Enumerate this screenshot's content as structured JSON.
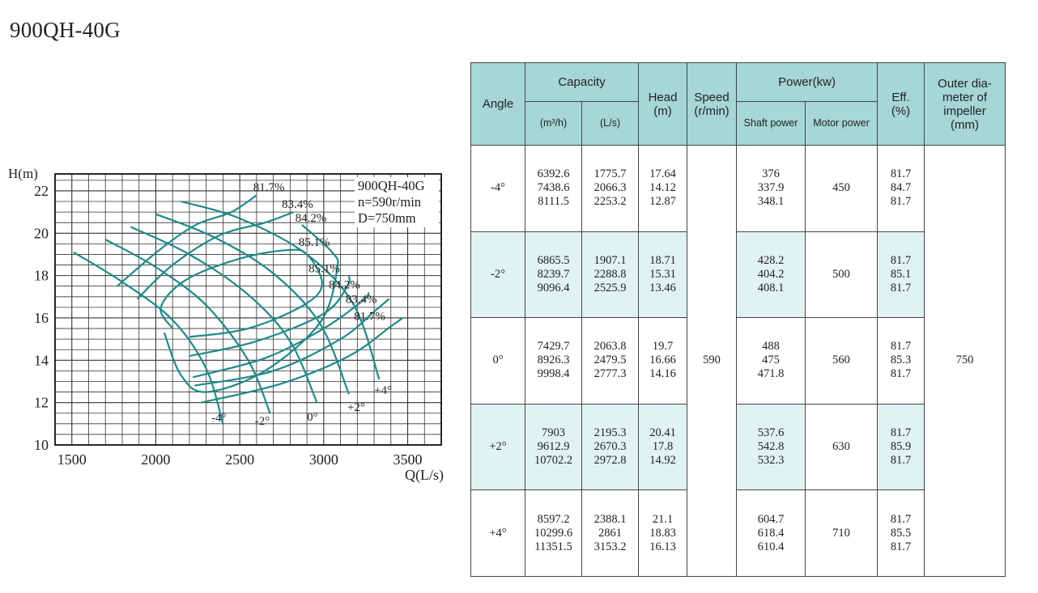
{
  "page_title": "900QH-40G",
  "chart_data": {
    "type": "line",
    "title": "",
    "xlabel": "Q(L/s)",
    "ylabel": "H(m)",
    "xlim": [
      1400,
      3700
    ],
    "ylim": [
      10,
      22.8
    ],
    "x_ticks": [
      1500,
      2000,
      2500,
      3000,
      3500
    ],
    "y_ticks": [
      10,
      12,
      14,
      16,
      18,
      20,
      22
    ],
    "grid": true,
    "info_box": [
      "900QH-40G",
      "n=590r/min",
      "D=750mm"
    ],
    "head_curves": [
      {
        "name": "-4°",
        "points": [
          [
            1510,
            19.1
          ],
          [
            1800,
            17.7
          ],
          [
            2100,
            15.9
          ],
          [
            2300,
            13.6
          ],
          [
            2400,
            11.0
          ]
        ]
      },
      {
        "name": "-2°",
        "points": [
          [
            1700,
            19.7
          ],
          [
            2000,
            18.4
          ],
          [
            2300,
            16.6
          ],
          [
            2550,
            14.0
          ],
          [
            2680,
            11.5
          ]
        ]
      },
      {
        "name": "0°",
        "points": [
          [
            1850,
            20.3
          ],
          [
            2200,
            19.0
          ],
          [
            2550,
            17.1
          ],
          [
            2800,
            14.9
          ],
          [
            2960,
            12.0
          ]
        ]
      },
      {
        "name": "+2°",
        "points": [
          [
            2000,
            20.9
          ],
          [
            2350,
            19.8
          ],
          [
            2700,
            18.1
          ],
          [
            2980,
            15.7
          ],
          [
            3150,
            12.4
          ]
        ]
      },
      {
        "name": "+4°",
        "points": [
          [
            2150,
            21.5
          ],
          [
            2500,
            20.7
          ],
          [
            2900,
            19.0
          ],
          [
            3180,
            16.6
          ],
          [
            3330,
            13.1
          ]
        ]
      }
    ],
    "efficiency_curves": [
      {
        "label": "81.7%",
        "points": [
          [
            1770,
            17.5
          ],
          [
            2020,
            19.2
          ],
          [
            2240,
            20.4
          ],
          [
            2450,
            21.0
          ],
          [
            2600,
            21.8
          ]
        ]
      },
      {
        "label": "83.4%",
        "points": [
          [
            1890,
            16.9
          ],
          [
            2100,
            18.5
          ],
          [
            2380,
            19.9
          ],
          [
            2650,
            20.5
          ],
          [
            2820,
            21.0
          ]
        ]
      },
      {
        "label": "84.2%",
        "points": [
          [
            2050,
            15.3
          ],
          [
            2150,
            13.3
          ],
          [
            2300,
            12.5
          ],
          [
            2650,
            13.5
          ],
          [
            2980,
            15.8
          ],
          [
            3080,
            18.3
          ],
          [
            3050,
            19.1
          ],
          [
            2870,
            20.4
          ]
        ]
      },
      {
        "label": "85.1%",
        "points": [
          [
            2100,
            15.5
          ],
          [
            2030,
            16.5
          ],
          [
            2180,
            17.8
          ],
          [
            2500,
            18.8
          ],
          [
            2780,
            19.2
          ],
          [
            2900,
            19.0
          ],
          [
            2990,
            17.6
          ],
          [
            2880,
            16.6
          ],
          [
            2550,
            15.5
          ],
          [
            2200,
            15.1
          ]
        ]
      },
      {
        "label": "85.1%",
        "points": [
          [
            2200,
            14.2
          ],
          [
            2600,
            14.9
          ],
          [
            3000,
            16.2
          ],
          [
            3140,
            17.5
          ],
          [
            3150,
            18.0
          ]
        ]
      },
      {
        "label": "84.2%",
        "points": [
          [
            2220,
            13.2
          ],
          [
            2650,
            14.1
          ],
          [
            3000,
            15.5
          ],
          [
            3230,
            16.8
          ],
          [
            3270,
            17.2
          ]
        ]
      },
      {
        "label": "83.4%",
        "points": [
          [
            2230,
            12.8
          ],
          [
            2700,
            13.5
          ],
          [
            3100,
            15.0
          ],
          [
            3300,
            16.3
          ],
          [
            3390,
            16.9
          ]
        ]
      },
      {
        "label": "81.7%",
        "points": [
          [
            2270,
            12.0
          ],
          [
            2750,
            12.9
          ],
          [
            3150,
            14.2
          ],
          [
            3400,
            15.6
          ],
          [
            3470,
            16.0
          ]
        ]
      }
    ],
    "annotations": [
      {
        "text": "81.7%",
        "x": 2580,
        "y": 22.0
      },
      {
        "text": "83.4%",
        "x": 2750,
        "y": 21.2
      },
      {
        "text": "84.2%",
        "x": 2830,
        "y": 20.55
      },
      {
        "text": "85.1%",
        "x": 2850,
        "y": 19.4
      },
      {
        "text": "85.1%",
        "x": 2910,
        "y": 18.15
      },
      {
        "text": "84.2%",
        "x": 3030,
        "y": 17.4
      },
      {
        "text": "83.4%",
        "x": 3130,
        "y": 16.7
      },
      {
        "text": "81.7%",
        "x": 3180,
        "y": 15.9
      },
      {
        "text": "-4°",
        "x": 2330,
        "y": 11.1
      },
      {
        "text": "-2°",
        "x": 2590,
        "y": 10.95
      },
      {
        "text": "0°",
        "x": 2900,
        "y": 11.15
      },
      {
        "text": "+2°",
        "x": 3140,
        "y": 11.6
      },
      {
        "text": "+4°",
        "x": 3300,
        "y": 12.4
      }
    ]
  },
  "table": {
    "headers": {
      "angle": "Angle",
      "capacity": "Capacity",
      "cap_m3h": "(m³/h)",
      "cap_ls": "(L/s)",
      "head": "Head",
      "head_unit": "(m)",
      "speed": "Speed",
      "speed_unit": "(r/min)",
      "power": "Power(kw)",
      "shaft": "Shaft power",
      "motor": "Motor power",
      "eff": "Eff.",
      "eff_unit": "(%)",
      "outer1": "Outer dia-",
      "outer2": "meter of",
      "outer3": "impeller",
      "outer4": "(mm)"
    },
    "speed": "590",
    "outer_diameter": "750",
    "rows": [
      {
        "angle": "-4°",
        "cap_m3h": [
          "6392.6",
          "7438.6",
          "8111.5"
        ],
        "cap_ls": [
          "1775.7",
          "2066.3",
          "2253.2"
        ],
        "head": [
          "17.64",
          "14.12",
          "12.87"
        ],
        "shaft": [
          "376",
          "337.9",
          "348.1"
        ],
        "motor": "450",
        "eff": [
          "81.7",
          "84.7",
          "81.7"
        ]
      },
      {
        "angle": "-2°",
        "cap_m3h": [
          "6865.5",
          "8239.7",
          "9096.4"
        ],
        "cap_ls": [
          "1907.1",
          "2288.8",
          "2525.9"
        ],
        "head": [
          "18.71",
          "15.31",
          "13.46"
        ],
        "shaft": [
          "428.2",
          "404.2",
          "408.1"
        ],
        "motor": "500",
        "eff": [
          "81.7",
          "85.1",
          "81.7"
        ]
      },
      {
        "angle": "0°",
        "cap_m3h": [
          "7429.7",
          "8926.3",
          "9998.4"
        ],
        "cap_ls": [
          "2063.8",
          "2479.5",
          "2777.3"
        ],
        "head": [
          "19.7",
          "16.66",
          "14.16"
        ],
        "shaft": [
          "488",
          "475",
          "471.8"
        ],
        "motor": "560",
        "eff": [
          "81.7",
          "85.3",
          "81.7"
        ]
      },
      {
        "angle": "+2°",
        "cap_m3h": [
          "7903",
          "9612.9",
          "10702.2"
        ],
        "cap_ls": [
          "2195.3",
          "2670.3",
          "2972.8"
        ],
        "head": [
          "20.41",
          "17.8",
          "14.92"
        ],
        "shaft": [
          "537.6",
          "542.8",
          "532.3"
        ],
        "motor": "630",
        "eff": [
          "81.7",
          "85.9",
          "81.7"
        ]
      },
      {
        "angle": "+4°",
        "cap_m3h": [
          "8597.2",
          "10299.6",
          "11351.5"
        ],
        "cap_ls": [
          "2388.1",
          "2861",
          "3153.2"
        ],
        "head": [
          "21.1",
          "18.83",
          "16.13"
        ],
        "shaft": [
          "604.7",
          "618.4",
          "610.4"
        ],
        "motor": "710",
        "eff": [
          "81.7",
          "85.5",
          "81.7"
        ]
      }
    ]
  },
  "colors": {
    "curve": "#1f8a8a",
    "header_bg": "#a6d6d6",
    "shade_bg": "#e1f2f2",
    "grid": "#333333"
  }
}
